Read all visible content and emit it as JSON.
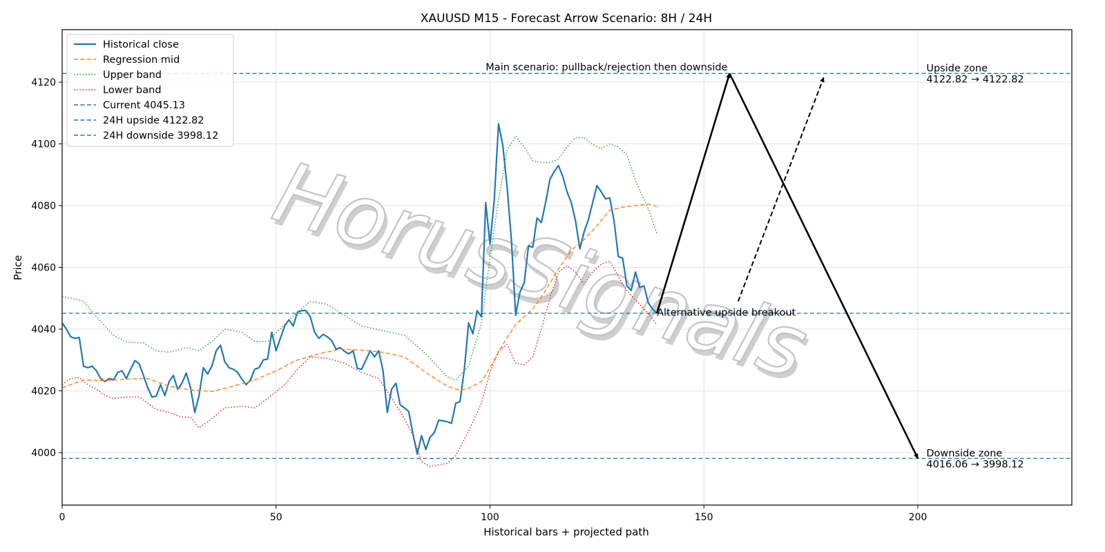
{
  "chart_data": {
    "type": "line",
    "title": "XAUUSD M15 - Forecast Arrow Scenario: 8H / 24H",
    "xlabel": "Historical bars + projected path",
    "ylabel": "Price",
    "xlim": [
      0,
      236
    ],
    "ylim": [
      3983,
      4137
    ],
    "xticks": [
      0,
      50,
      100,
      150,
      200
    ],
    "yticks": [
      4000,
      4020,
      4040,
      4060,
      4080,
      4100,
      4120
    ],
    "grid": true,
    "legend_position": "top-left",
    "watermark": "HorusSignals",
    "colors": {
      "historical": "#1f77b4",
      "regression": "#ff7f0e",
      "upper": "#2ca02c",
      "lower": "#d62728",
      "hline": "#1f77b4"
    },
    "series": [
      {
        "name": "Historical close",
        "style": "solid",
        "color": "#1f77b4",
        "x": [
          0,
          1,
          2,
          3,
          4,
          5,
          6,
          7,
          8,
          9,
          10,
          11,
          12,
          13,
          14,
          15,
          16,
          17,
          18,
          19,
          20,
          21,
          22,
          23,
          24,
          25,
          26,
          27,
          28,
          29,
          30,
          31,
          32,
          33,
          34,
          35,
          36,
          37,
          38,
          39,
          40,
          41,
          42,
          43,
          44,
          45,
          46,
          47,
          48,
          49,
          50,
          51,
          52,
          53,
          54,
          55,
          56,
          57,
          58,
          59,
          60,
          61,
          62,
          63,
          64,
          65,
          66,
          67,
          68,
          69,
          70,
          71,
          72,
          73,
          74,
          75,
          76,
          77,
          78,
          79,
          80,
          81,
          82,
          83,
          84,
          85,
          86,
          87,
          88,
          89,
          90,
          91,
          92,
          93,
          94,
          95,
          96,
          97,
          98,
          99,
          100,
          101,
          102,
          103,
          104,
          105,
          106,
          107,
          108,
          109,
          110,
          111,
          112,
          113,
          114,
          115,
          116,
          117,
          118,
          119,
          120,
          121,
          122,
          123,
          124,
          125,
          126,
          127,
          128,
          129,
          130,
          131,
          132,
          133,
          134,
          135,
          136,
          137,
          138,
          139
        ],
        "values": [
          4042,
          4040,
          4037.5,
          4037,
          4037.3,
          4028,
          4027.5,
          4028,
          4026.5,
          4024,
          4023,
          4024,
          4023.5,
          4026,
          4026.5,
          4024,
          4027,
          4029.8,
          4028.8,
          4025,
          4021,
          4018,
          4018.3,
          4022,
          4018.5,
          4023,
          4025,
          4020.5,
          4022.5,
          4025.8,
          4021,
          4013,
          4018.5,
          4027.5,
          4025.5,
          4028,
          4033,
          4034.8,
          4029.5,
          4027.5,
          4027,
          4026,
          4023.8,
          4022,
          4023.5,
          4027,
          4027.5,
          4030,
          4030.3,
          4039,
          4033,
          4037,
          4041,
          4043,
          4041,
          4045.5,
          4046,
          4046,
          4044,
          4039,
          4037,
          4038.3,
          4037.5,
          4036.3,
          4033.5,
          4034,
          4032.8,
          4032,
          4033,
          4027.3,
          4027,
          4030,
          4033,
          4031,
          4033,
          4026.5,
          4013,
          4020.5,
          4022.5,
          4015.5,
          4014.5,
          4013.3,
          4006,
          3999.5,
          4005.5,
          4001,
          4005,
          4006.5,
          4010.5,
          4010.3,
          4010,
          4009.5,
          4016,
          4016.5,
          4027,
          4042,
          4038.5,
          4046,
          4044,
          4081,
          4067.5,
          4082,
          4106.5,
          4099.5,
          4086,
          4069,
          4044.5,
          4052,
          4055,
          4067,
          4066.5,
          4076,
          4074.5,
          4081,
          4088.5,
          4091,
          4093,
          4089.5,
          4084.5,
          4081,
          4075,
          4066,
          4071.5,
          4075.5,
          4081,
          4086.5,
          4084.5,
          4082.2,
          4082.5,
          4075,
          4063.5,
          4063,
          4054,
          4052.5,
          4058.5,
          4053.5,
          4054,
          4048.5,
          4046.5,
          4045.13
        ]
      },
      {
        "name": "Regression mid",
        "style": "dashed",
        "color": "#ff7f0e",
        "x": [
          0,
          5,
          10,
          15,
          20,
          25,
          30,
          35,
          40,
          45,
          50,
          55,
          60,
          65,
          70,
          75,
          80,
          85,
          90,
          93,
          95,
          98,
          100,
          103,
          106,
          110,
          113,
          116,
          119,
          122,
          125,
          128,
          131,
          134,
          137,
          139
        ],
        "values": [
          4021,
          4023.5,
          4023.3,
          4023.8,
          4024,
          4021.5,
          4020.3,
          4019.8,
          4021.5,
          4023.5,
          4026.5,
          4030,
          4032,
          4033.5,
          4033.2,
          4032.5,
          4031,
          4026,
          4021.5,
          4020.2,
          4020.8,
          4023,
          4027.5,
          4035,
          4041.5,
          4046.5,
          4052.5,
          4059.5,
          4065.5,
          4069,
          4073.5,
          4078.5,
          4079.5,
          4080,
          4080.5,
          4079.7
        ]
      },
      {
        "name": "Upper band",
        "style": "dotted",
        "color": "#2ca02c",
        "x": [
          0,
          3,
          5,
          8,
          12,
          15,
          19,
          22,
          25,
          29,
          32,
          35,
          38,
          42,
          45,
          48,
          52,
          55,
          58,
          62,
          66,
          70,
          75,
          80,
          85,
          90,
          92,
          95,
          98,
          100,
          102,
          104,
          106,
          108,
          110,
          112,
          114,
          116,
          118,
          120,
          122,
          124,
          126,
          128,
          130,
          132,
          134,
          137,
          139
        ],
        "values": [
          4050.5,
          4049.8,
          4049,
          4044,
          4038,
          4035.8,
          4035.5,
          4033,
          4032.5,
          4034,
          4033,
          4036,
          4040,
          4039,
          4036,
          4036,
          4041.5,
          4045.5,
          4049,
          4048,
          4044.5,
          4041,
          4039.5,
          4038,
          4032,
          4024.5,
          4023.5,
          4028,
          4042,
          4063,
          4082,
          4098,
          4102.5,
          4099,
          4094.5,
          4094,
          4094,
          4095,
          4099,
          4102,
          4102,
          4099.8,
          4098.5,
          4100,
          4099,
          4096.5,
          4088,
          4079,
          4071
        ]
      },
      {
        "name": "Lower band",
        "style": "dotted",
        "color": "#d62728",
        "x": [
          0,
          2,
          4,
          6,
          8,
          10,
          12,
          15,
          18,
          20,
          22,
          25,
          28,
          30,
          32,
          35,
          38,
          42,
          45,
          48,
          52,
          55,
          58,
          62,
          66,
          70,
          74,
          78,
          80,
          82,
          84,
          86,
          88,
          90,
          92,
          95,
          98,
          100,
          102,
          104,
          106,
          108,
          110,
          112,
          114,
          116,
          118,
          120,
          122,
          124,
          126,
          128,
          130,
          132,
          134,
          137,
          139
        ],
        "values": [
          4022,
          4024,
          4024.3,
          4022,
          4020.5,
          4018.5,
          4017.5,
          4018,
          4018,
          4016,
          4014,
          4013,
          4011.5,
          4011.5,
          4008,
          4011,
          4014.5,
          4015,
          4014.5,
          4017.5,
          4022,
          4027,
          4031,
          4030.5,
          4029,
          4026,
          4024,
          4015.5,
          4011,
          4005.5,
          3997,
          3995.5,
          3996,
          3996.5,
          3999,
          4007,
          4016,
          4026,
          4033,
          4035,
          4029,
          4028.5,
          4031,
          4040,
          4050,
          4058.5,
          4060.5,
          4058.5,
          4054.5,
          4058.5,
          4061,
          4062,
          4057,
          4052.5,
          4049.5,
          4045,
          4041.5
        ]
      }
    ],
    "hlines": [
      {
        "name": "Current 4045.13",
        "y": 4045.13,
        "style": "dashed",
        "color": "#1f77b4"
      },
      {
        "name": "24H upside 4122.82",
        "y": 4122.82,
        "style": "dashed",
        "color": "#1f77b4"
      },
      {
        "name": "24H downside 3998.12",
        "y": 3998.12,
        "style": "dashed",
        "color": "#1f77b4"
      }
    ],
    "arrows": [
      {
        "from": [
          139,
          4045.13
        ],
        "to": [
          156,
          4122.82
        ],
        "style": "solid"
      },
      {
        "from": [
          156,
          4122.82
        ],
        "to": [
          200,
          3998.12
        ],
        "style": "solid"
      },
      {
        "from": [
          158,
          4049
        ],
        "to": [
          178,
          4121.5
        ],
        "style": "dashed"
      }
    ],
    "annotations": [
      {
        "text": "Main scenario: pullback/rejection then downside",
        "x": 99,
        "y": 4123.8
      },
      {
        "text": "Alternative upside breakout",
        "x": 139,
        "y": 4044.4
      }
    ],
    "zones": [
      {
        "title": "Upside zone",
        "range": "4122.82 → 4122.82",
        "x": 202,
        "y": 4122.82
      },
      {
        "title": "Downside zone",
        "range": "4016.06 → 3998.12",
        "x": 202,
        "y": 3998.12
      }
    ]
  }
}
